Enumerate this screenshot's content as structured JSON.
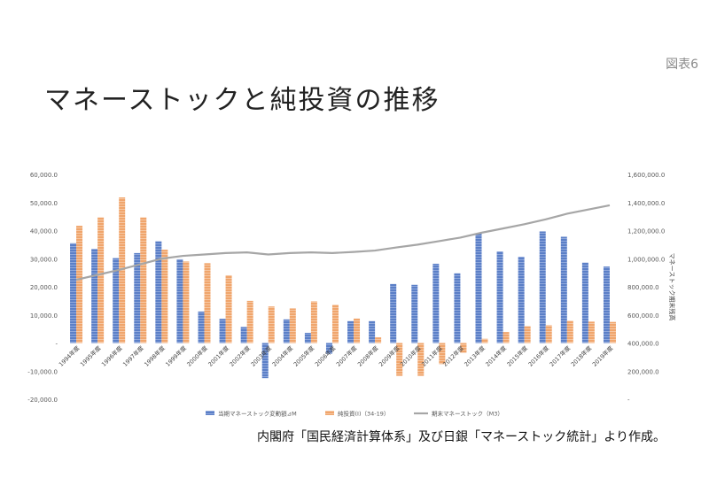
{
  "page": {
    "figure_label": "図表6",
    "title": "マネーストックと純投資の推移",
    "source_note": "内閣府「国民経済計算体系」及び日銀「マネーストック統計」より作成。"
  },
  "chart_data": {
    "type": "bar",
    "categories": [
      "1994年度",
      "1995年度",
      "1996年度",
      "1997年度",
      "1998年度",
      "1999年度",
      "2000年度",
      "2001年度",
      "2002年度",
      "2003年度",
      "2004年度",
      "2005年度",
      "2006年度",
      "2007年度",
      "2008年度",
      "2009年度",
      "2010年度",
      "2011年度",
      "2012年度",
      "2013年度",
      "2014年度",
      "2015年度",
      "2016年度",
      "2017年度",
      "2018年度",
      "2019年度"
    ],
    "series": [
      {
        "name": "当期マネーストック変動額⊿M",
        "type": "bar",
        "axis": "left",
        "color": "#5B7FC7",
        "values": [
          35500,
          33500,
          30200,
          32000,
          36200,
          29800,
          11200,
          8600,
          5700,
          -12500,
          8400,
          3600,
          -3800,
          7800,
          7800,
          21000,
          20700,
          28200,
          24800,
          38900,
          32600,
          30700,
          39700,
          37800,
          28600,
          27200
        ]
      },
      {
        "name": "純投資(I)（34-19）",
        "type": "bar",
        "axis": "left",
        "color": "#F0A56C",
        "values": [
          41700,
          44700,
          51800,
          44700,
          33200,
          29000,
          28400,
          24100,
          15000,
          13000,
          12300,
          14800,
          13600,
          8700,
          2000,
          -11700,
          -11700,
          -7500,
          -3500,
          1500,
          3900,
          6000,
          6300,
          7900,
          7600,
          7500
        ]
      },
      {
        "name": "期末マネーストック（M3）",
        "type": "line",
        "axis": "right",
        "color": "#a6a6a6",
        "values": [
          850000,
          885000,
          920000,
          960000,
          1000000,
          1020000,
          1030000,
          1040000,
          1045000,
          1030000,
          1040000,
          1045000,
          1040000,
          1048000,
          1058000,
          1080000,
          1100000,
          1125000,
          1150000,
          1185000,
          1215000,
          1245000,
          1280000,
          1320000,
          1350000,
          1380000
        ]
      }
    ],
    "y_left": {
      "ylim": [
        -20000,
        60000
      ],
      "ticks": [
        "-20,000.0",
        "-10,000.0",
        "-",
        "10,000.0",
        "20,000.0",
        "30,000.0",
        "40,000.0",
        "50,000.0",
        "60,000.0"
      ]
    },
    "y_right": {
      "label": "マネーストック期末残高",
      "ylim": [
        0,
        1600000
      ],
      "ticks": [
        "-",
        "200,000.0",
        "400,000.0",
        "600,000.0",
        "800,000.0",
        "1,000,000.0",
        "1,200,000.0",
        "1,400,000.0",
        "1,600,000.0"
      ]
    },
    "grid": false,
    "legend_position": "bottom"
  }
}
